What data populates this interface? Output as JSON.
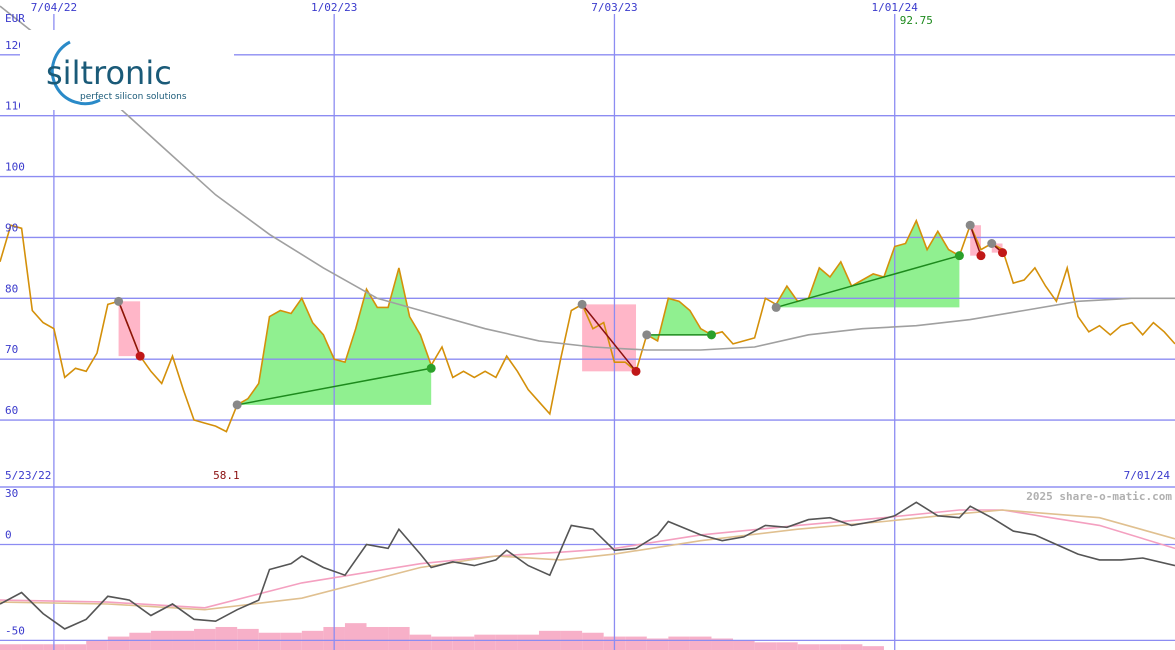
{
  "logo": {
    "name": "siltronic",
    "tagline": "perfect silicon solutions"
  },
  "chart_data": [
    {
      "type": "line",
      "unit_label": "EUR",
      "start_date": "5/23/22",
      "end_date": "7/01/24",
      "low": 58.1,
      "high": 92.75,
      "watermark": "2025 share-o-matic.com",
      "xlim": [
        0,
        109
      ],
      "ylim": [
        49,
        129
      ],
      "yticks": [
        60,
        70,
        80,
        90,
        100,
        110,
        120
      ],
      "grid": true,
      "xticks": [
        {
          "value": 5,
          "label": "7/04/22"
        },
        {
          "value": 31,
          "label": "1/02/23"
        },
        {
          "value": 57,
          "label": "7/03/23"
        },
        {
          "value": 83,
          "label": "1/01/24"
        }
      ],
      "series": [
        {
          "color": "#d4900a",
          "values": [
            86,
            92,
            91.5,
            78,
            76,
            75,
            67,
            68.5,
            68,
            71,
            79,
            79.5,
            75,
            70.5,
            68,
            66,
            70.5,
            65,
            60,
            59.5,
            59,
            58.1,
            62.5,
            63.5,
            66,
            77,
            78,
            77.5,
            80,
            76,
            74,
            70,
            69.5,
            75,
            81.5,
            78.5,
            78.5,
            85,
            77,
            74,
            69,
            72,
            67,
            68,
            67,
            68,
            67,
            70.5,
            68,
            65,
            63,
            61,
            70,
            78,
            79,
            75,
            76,
            69.5,
            69.5,
            68,
            74,
            73,
            80,
            79.5,
            78,
            75,
            74,
            74.5,
            72.5,
            73,
            73.5,
            80,
            79,
            82,
            79.5,
            80,
            85,
            83.5,
            86,
            82,
            83,
            84,
            83.5,
            88.5,
            89,
            92.75,
            88,
            91,
            88,
            87,
            92,
            88,
            89,
            88,
            82.5,
            83,
            85,
            82,
            79.5,
            85,
            77,
            74.5,
            75.5,
            74,
            75.5,
            76,
            74,
            76,
            74.5,
            72.5
          ]
        },
        {
          "color": "#a0a0a0",
          "x": [
            0,
            5,
            10,
            15,
            20,
            25,
            30,
            35,
            40,
            45,
            50,
            55,
            60,
            65,
            70,
            75,
            80,
            85,
            90,
            95,
            100,
            105,
            109
          ],
          "values": [
            128,
            121,
            113,
            105,
            97,
            90.5,
            85,
            80,
            77.5,
            75,
            73,
            72,
            71.5,
            71.5,
            72,
            74,
            75,
            75.5,
            76.5,
            78,
            79.5,
            80,
            80
          ]
        }
      ],
      "trades": [
        {
          "x": [
            11,
            13
          ],
          "values": [
            79.5,
            70.5
          ],
          "color": "#8b1010"
        },
        {
          "x": [
            22,
            40
          ],
          "values": [
            62.5,
            68.5
          ],
          "color": "#1d8a1d"
        },
        {
          "x": [
            54,
            59
          ],
          "values": [
            79,
            68
          ],
          "color": "#8b1010"
        },
        {
          "x": [
            60,
            66
          ],
          "values": [
            74,
            74
          ],
          "color": "#1d8a1d"
        },
        {
          "x": [
            72,
            89
          ],
          "values": [
            78.5,
            87
          ],
          "color": "#1d8a1d"
        },
        {
          "x": [
            90,
            91
          ],
          "values": [
            92,
            87
          ],
          "color": "#8b1010"
        },
        {
          "x": [
            92,
            93
          ],
          "values": [
            89,
            87.5
          ],
          "color": "#8b1010"
        }
      ]
    },
    {
      "type": "line",
      "xlim": [
        0,
        109
      ],
      "ylim": [
        -55,
        30
      ],
      "yticks": [
        30,
        0,
        -50
      ],
      "grid": true,
      "bars": {
        "color": "#f7b0c8",
        "x": [
          0,
          2,
          4,
          6,
          8,
          10,
          12,
          14,
          16,
          18,
          20,
          22,
          24,
          26,
          28,
          30,
          32,
          34,
          36,
          38,
          40,
          42,
          44,
          46,
          48,
          50,
          52,
          54,
          56,
          58,
          60,
          62,
          64,
          66,
          68,
          70,
          72,
          74,
          76,
          78,
          80
        ],
        "values": [
          -52,
          -52,
          -52,
          -52,
          -50,
          -48,
          -46,
          -45,
          -45,
          -44,
          -43,
          -44,
          -46,
          -46,
          -45,
          -43,
          -41,
          -43,
          -43,
          -47,
          -48,
          -48,
          -47,
          -47,
          -47,
          -45,
          -45,
          -46,
          -48,
          -48,
          -49,
          -48,
          -48,
          -49,
          -50,
          -51,
          -51,
          -52,
          -52,
          -52,
          -53
        ]
      },
      "series": [
        {
          "color": "#f4a0c0",
          "x": [
            0,
            10,
            19,
            28,
            39,
            46,
            52,
            57,
            65,
            74,
            82,
            89,
            93,
            102,
            109
          ],
          "values": [
            -29,
            -30,
            -33,
            -20,
            -10,
            -6,
            -4,
            -2,
            5,
            10,
            14,
            18,
            18,
            10,
            -2
          ]
        },
        {
          "color": "#e0c090",
          "x": [
            0,
            10,
            19,
            28,
            39,
            46,
            52,
            57,
            65,
            74,
            82,
            89,
            93,
            102,
            109
          ],
          "values": [
            -30,
            -31,
            -34,
            -28,
            -12,
            -6,
            -8,
            -5,
            2,
            8,
            12,
            16,
            18,
            14,
            3
          ]
        },
        {
          "color": "#555555",
          "x": [
            0,
            2,
            4,
            6,
            8,
            10,
            12,
            14,
            16,
            18,
            20,
            22,
            24,
            25,
            27,
            28,
            30,
            32,
            34,
            36,
            37,
            39,
            40,
            42,
            44,
            46,
            47,
            49,
            51,
            53,
            55,
            57,
            59,
            61,
            62,
            65,
            67,
            69,
            71,
            73,
            75,
            77,
            79,
            81,
            83,
            85,
            87,
            89,
            90,
            92,
            94,
            96,
            98,
            100,
            102,
            104,
            106,
            109
          ],
          "values": [
            -31,
            -25,
            -36,
            -44,
            -39,
            -27,
            -29,
            -37,
            -31,
            -39,
            -40,
            -34,
            -29,
            -13,
            -10,
            -6,
            -12,
            -16,
            0,
            -2,
            8,
            -5,
            -12,
            -9,
            -11,
            -8,
            -3,
            -11,
            -16,
            10,
            8,
            -3,
            -2,
            5,
            12,
            5,
            2,
            4,
            10,
            9,
            13,
            14,
            10,
            12,
            15,
            22,
            15,
            14,
            20,
            14,
            7,
            5,
            0,
            -5,
            -8,
            -8,
            -7,
            -11
          ]
        }
      ]
    }
  ]
}
